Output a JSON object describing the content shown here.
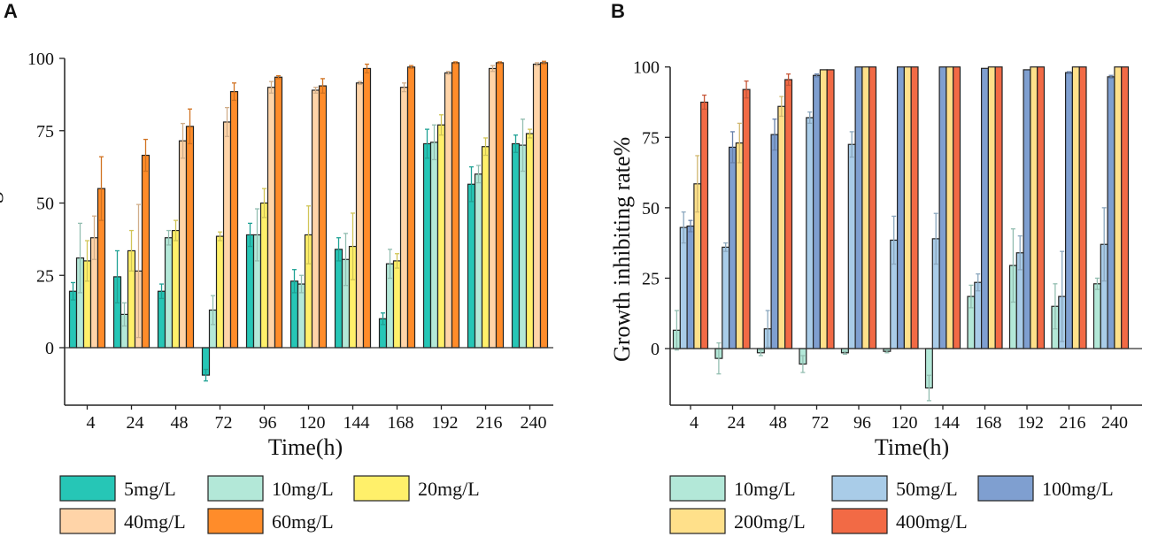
{
  "chart_data": [
    {
      "type": "bar",
      "panel_label": "A",
      "xlabel": "Time(h)",
      "ylabel": "Growth inhibiting rate%",
      "ylim": [
        -20,
        100
      ],
      "yticks": [
        0,
        25,
        50,
        75,
        100
      ],
      "grid": false,
      "legend_position": "bottom",
      "categories": [
        "4",
        "24",
        "48",
        "72",
        "96",
        "120",
        "144",
        "168",
        "192",
        "216",
        "240"
      ],
      "series": [
        {
          "name": "5mg/L",
          "color": "#26c6b6",
          "values": [
            19.5,
            24.5,
            19.5,
            -9.5,
            39,
            23,
            34,
            10,
            70.5,
            56.5,
            70.5
          ],
          "errors": [
            3,
            9,
            2.5,
            2,
            4,
            4,
            4,
            2,
            5,
            6,
            3
          ]
        },
        {
          "name": "10mg/L",
          "color": "#b3e8d8",
          "values": [
            31,
            11.5,
            38,
            13,
            39,
            22,
            30.5,
            29,
            71,
            60,
            70
          ],
          "errors": [
            12,
            4,
            2.5,
            5,
            9,
            3,
            9,
            5,
            6,
            3,
            9
          ]
        },
        {
          "name": "20mg/L",
          "color": "#fff06a",
          "values": [
            30,
            33.5,
            40.5,
            38.5,
            50,
            39,
            35,
            30,
            77,
            69.5,
            74
          ],
          "errors": [
            7,
            7,
            3.5,
            1.5,
            5,
            10,
            11.5,
            2.5,
            3.5,
            3,
            1.5
          ]
        },
        {
          "name": "40mg/L",
          "color": "#ffd4a8",
          "values": [
            38,
            26.5,
            71.5,
            78,
            90,
            89,
            91.5,
            90,
            95,
            96.5,
            98
          ],
          "errors": [
            7.5,
            23,
            6,
            5,
            2,
            1,
            0.5,
            1.5,
            0.5,
            1,
            0.5
          ]
        },
        {
          "name": "60mg/L",
          "color": "#ff8c2a",
          "values": [
            55,
            66.5,
            76.5,
            88.5,
            93.5,
            90.5,
            96.5,
            97,
            98.5,
            98.5,
            98.5
          ],
          "errors": [
            11,
            5.5,
            6,
            3,
            0.5,
            2.5,
            1.5,
            0.5,
            0.3,
            0.3,
            0.5
          ]
        }
      ]
    },
    {
      "type": "bar",
      "panel_label": "B",
      "xlabel": "Time(h)",
      "ylabel": "Growth inhibiting rate%",
      "ylim": [
        -20,
        100
      ],
      "yticks": [
        0,
        25,
        50,
        75,
        100
      ],
      "grid": false,
      "legend_position": "bottom",
      "categories": [
        "4",
        "24",
        "48",
        "72",
        "96",
        "120",
        "144",
        "168",
        "192",
        "216",
        "240"
      ],
      "series": [
        {
          "name": "10mg/L",
          "color": "#b3e8d8",
          "values": [
            6.5,
            -3.5,
            -1.5,
            -5.5,
            -1.5,
            -1,
            -14,
            18.5,
            29.5,
            15,
            23
          ],
          "errors": [
            7,
            5.5,
            1,
            3,
            0.5,
            0.5,
            4.5,
            4,
            13,
            8,
            2
          ]
        },
        {
          "name": "50mg/L",
          "color": "#a9cce8",
          "values": [
            43,
            36,
            7,
            82,
            72.5,
            38.5,
            39,
            23.5,
            34,
            18.5,
            37
          ],
          "errors": [
            5.5,
            1.5,
            6.5,
            2,
            4.5,
            8.5,
            9,
            3,
            6,
            16,
            13
          ]
        },
        {
          "name": "100mg/L",
          "color": "#7f9fd0",
          "values": [
            43.5,
            71.5,
            76,
            97,
            100,
            100,
            100,
            99.5,
            99,
            98,
            96.5
          ],
          "errors": [
            2,
            5.5,
            5.5,
            0.5,
            0,
            0,
            0,
            0,
            0,
            0.3,
            0.5
          ]
        },
        {
          "name": "200mg/L",
          "color": "#ffe08a",
          "values": [
            58.5,
            73,
            86,
            99,
            100,
            100,
            100,
            100,
            100,
            100,
            100
          ],
          "errors": [
            10,
            7,
            3.5,
            0,
            0,
            0,
            0,
            0,
            0,
            0,
            0
          ]
        },
        {
          "name": "400mg/L",
          "color": "#f26a45",
          "values": [
            87.5,
            92,
            95.5,
            99,
            100,
            100,
            100,
            100,
            100,
            100,
            100
          ],
          "errors": [
            2.5,
            3,
            2,
            0,
            0,
            0,
            0,
            0,
            0,
            0,
            0
          ]
        }
      ]
    }
  ]
}
